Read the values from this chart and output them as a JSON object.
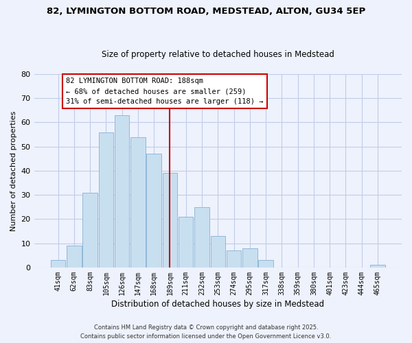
{
  "title_line1": "82, LYMINGTON BOTTOM ROAD, MEDSTEAD, ALTON, GU34 5EP",
  "title_line2": "Size of property relative to detached houses in Medstead",
  "xlabel": "Distribution of detached houses by size in Medstead",
  "ylabel": "Number of detached properties",
  "bar_labels": [
    "41sqm",
    "62sqm",
    "83sqm",
    "105sqm",
    "126sqm",
    "147sqm",
    "168sqm",
    "189sqm",
    "211sqm",
    "232sqm",
    "253sqm",
    "274sqm",
    "295sqm",
    "317sqm",
    "338sqm",
    "359sqm",
    "380sqm",
    "401sqm",
    "423sqm",
    "444sqm",
    "465sqm"
  ],
  "bar_values": [
    3,
    9,
    31,
    56,
    63,
    54,
    47,
    39,
    21,
    25,
    13,
    7,
    8,
    3,
    0,
    0,
    0,
    0,
    0,
    0,
    1
  ],
  "bar_color": "#c8dff0",
  "bar_edge_color": "#90b8d8",
  "vline_x_index": 7,
  "vline_color": "#cc0000",
  "annotation_title": "82 LYMINGTON BOTTOM ROAD: 188sqm",
  "annotation_line2": "← 68% of detached houses are smaller (259)",
  "annotation_line3": "31% of semi-detached houses are larger (118) →",
  "annotation_box_facecolor": "#ffffff",
  "annotation_box_edgecolor": "#cc0000",
  "ylim": [
    0,
    80
  ],
  "yticks": [
    0,
    10,
    20,
    30,
    40,
    50,
    60,
    70,
    80
  ],
  "footer_line1": "Contains HM Land Registry data © Crown copyright and database right 2025.",
  "footer_line2": "Contains public sector information licensed under the Open Government Licence v3.0.",
  "bg_color": "#eef2fc",
  "grid_color": "#c0cce8",
  "title1_fontsize": 9.5,
  "title2_fontsize": 8.5,
  "xlabel_fontsize": 8.5,
  "ylabel_fontsize": 8,
  "tick_fontsize": 7,
  "ann_fontsize": 7.5,
  "footer_fontsize": 6
}
